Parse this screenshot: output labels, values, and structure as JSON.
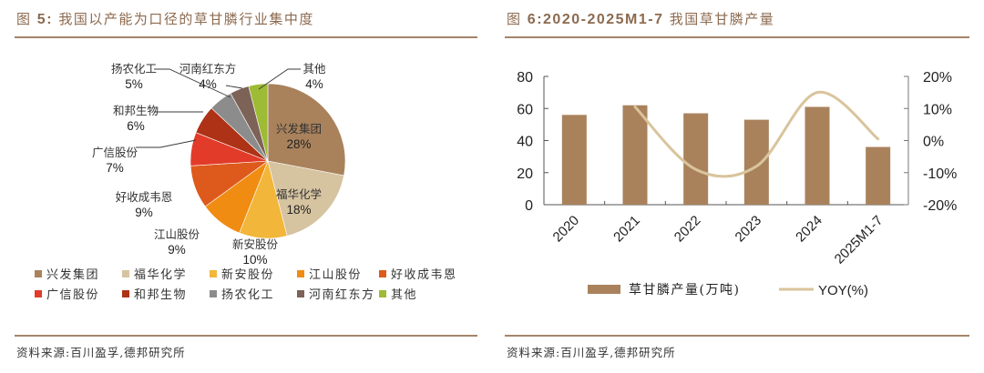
{
  "figures": [
    {
      "title_prefix": "图",
      "title_number": "5:",
      "title_text": "我国以产能为口径的草甘膦行业集中度",
      "source": "资料来源:百川盈孚,德邦研究所"
    },
    {
      "title_prefix": "图",
      "title_number": "6:2020-2025M1-7",
      "title_text": "我国草甘膦产量",
      "source": "资料来源:百川盈孚,德邦研究所"
    }
  ],
  "chart_data": [
    {
      "type": "pie",
      "title": "图 5:我国以产能为口径的草甘膦行业集中度",
      "slices": [
        {
          "label": "兴发集团",
          "value": 28,
          "pct_label": "28%",
          "color": "#a9825c"
        },
        {
          "label": "福华化学",
          "value": 18,
          "pct_label": "18%",
          "color": "#d6c3a0"
        },
        {
          "label": "新安股份",
          "value": 10,
          "pct_label": "10%",
          "color": "#f2b63a"
        },
        {
          "label": "江山股份",
          "value": 9,
          "pct_label": "9%",
          "color": "#f08c12"
        },
        {
          "label": "好收成韦恩",
          "value": 9,
          "pct_label": "9%",
          "color": "#dd5a1c"
        },
        {
          "label": "广信股份",
          "value": 7,
          "pct_label": "7%",
          "color": "#e23b2a"
        },
        {
          "label": "和邦生物",
          "value": 6,
          "pct_label": "6%",
          "color": "#ad3216"
        },
        {
          "label": "扬农化工",
          "value": 5,
          "pct_label": "5%",
          "color": "#8c8c8c"
        },
        {
          "label": "河南红东方",
          "value": 4,
          "pct_label": "4%",
          "color": "#7d6257"
        },
        {
          "label": "其他",
          "value": 4,
          "pct_label": "4%",
          "color": "#9dbb34"
        }
      ],
      "legend_position": "bottom"
    },
    {
      "type": "bar+line",
      "title": "图 6:2020-2025M1-7 我国草甘膦产量",
      "categories": [
        "2020",
        "2021",
        "2022",
        "2023",
        "2024",
        "2025M1-7"
      ],
      "series": [
        {
          "name": "草甘膦产量(万吨)",
          "type": "bar",
          "axis": "left",
          "color": "#a9825c",
          "values": [
            56,
            62,
            57,
            53,
            61,
            36
          ]
        },
        {
          "name": "YOY(%)",
          "type": "line",
          "axis": "right",
          "color": "#d9c49c",
          "values": [
            null,
            10.5,
            -9,
            -8,
            15,
            0.5
          ]
        }
      ],
      "y_left": {
        "min": 0,
        "max": 80,
        "ticks": [
          0,
          20,
          40,
          60,
          80
        ],
        "tick_labels": [
          "0",
          "20",
          "40",
          "60",
          "80"
        ]
      },
      "y_right": {
        "min": -20,
        "max": 20,
        "ticks": [
          -20,
          -10,
          0,
          10,
          20
        ],
        "tick_labels": [
          "-20%",
          "-10%",
          "0%",
          "10%",
          "20%"
        ]
      },
      "xlabel": "",
      "ylabel": "",
      "grid": false,
      "legend_position": "bottom"
    }
  ]
}
